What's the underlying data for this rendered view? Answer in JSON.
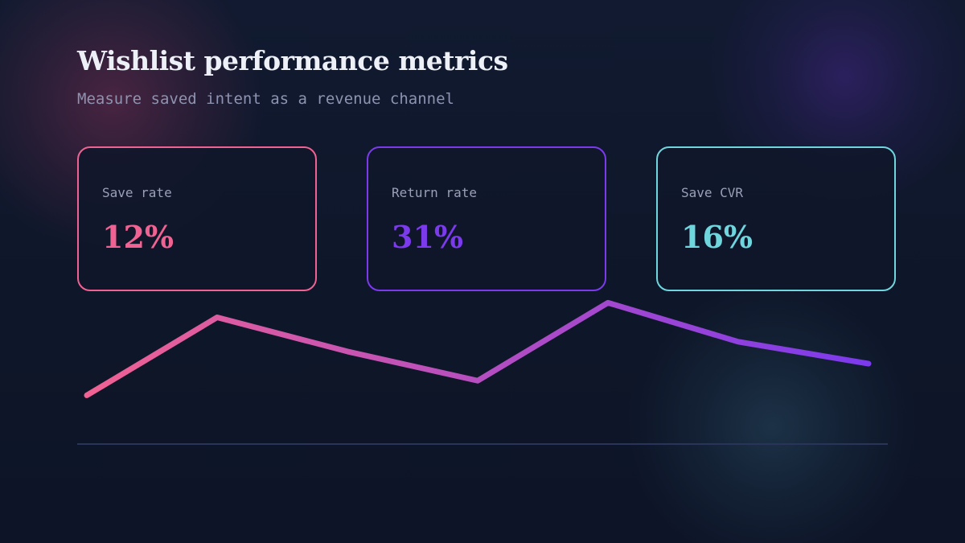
{
  "title": "Wishlist performance metrics",
  "subtitle": "Measure saved intent as a revenue channel",
  "metrics": [
    {
      "label": "Save rate",
      "value": "12%",
      "color": "#f06292"
    },
    {
      "label": "Return rate",
      "value": "31%",
      "color": "#7c3aed"
    },
    {
      "label": "Save CVR",
      "value": "16%",
      "color": "#6fd6de"
    }
  ],
  "chart_data": {
    "type": "line",
    "title": "",
    "xlabel": "",
    "ylabel": "",
    "x": [
      1,
      2,
      3,
      4,
      5,
      6,
      7
    ],
    "series": [
      {
        "values": [
          20,
          52,
          38,
          26,
          58,
          42,
          33
        ]
      }
    ],
    "ylim": [
      0,
      70
    ],
    "grid": false,
    "axes_visible": false,
    "line_gradient": [
      "#f06292",
      "#7c3aed"
    ],
    "baseline_color": "#2a3458"
  }
}
